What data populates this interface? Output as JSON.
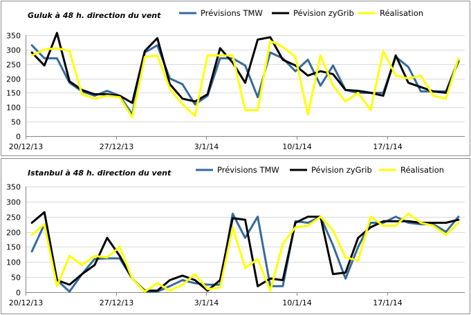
{
  "chart_data": [
    {
      "type": "line",
      "title": "Guluk à 48 h. direction du vent",
      "ylim": [
        0,
        350
      ],
      "yticks": [
        "0",
        "50",
        "100",
        "150",
        "200",
        "250",
        "300",
        "350"
      ],
      "xtick_labels": [
        "20/12/13",
        "27/12/13",
        "3/1/14",
        "10/1/14",
        "17/1/14"
      ],
      "xlim": [
        "20/12/13",
        "23/1/14"
      ],
      "grid": true,
      "legend": "top",
      "series": [
        {
          "name": "Prévisions TMW",
          "color": "#356a9c",
          "values": [
            315,
            270,
            270,
            185,
            155,
            140,
            157,
            140,
            75,
            290,
            315,
            200,
            180,
            110,
            140,
            270,
            270,
            245,
            135,
            290,
            270,
            225,
            265,
            175,
            245,
            160,
            150,
            150,
            150,
            275,
            240,
            155,
            155,
            155,
            265
          ]
        },
        {
          "name": "Pévision zyGrib",
          "color": "#000000",
          "values": [
            290,
            245,
            358,
            190,
            160,
            145,
            145,
            140,
            115,
            295,
            340,
            180,
            130,
            120,
            145,
            305,
            255,
            185,
            335,
            343,
            265,
            245,
            210,
            225,
            215,
            160,
            157,
            150,
            140,
            280,
            185,
            170,
            155,
            150,
            260
          ]
        },
        {
          "name": "Réalisation",
          "color": "#ffff00",
          "values": [
            280,
            300,
            305,
            295,
            145,
            130,
            140,
            135,
            65,
            275,
            280,
            165,
            110,
            70,
            280,
            280,
            280,
            90,
            90,
            330,
            310,
            275,
            75,
            280,
            175,
            120,
            150,
            90,
            295,
            210,
            200,
            210,
            140,
            130,
            270
          ]
        }
      ]
    },
    {
      "type": "line",
      "title": "Istanbul à 48 h. direction du vent",
      "ylim": [
        0,
        350
      ],
      "yticks": [
        "0",
        "50",
        "100",
        "150",
        "200",
        "250",
        "300",
        "350"
      ],
      "xtick_labels": [
        "20/12/13",
        "27/12/13",
        "3/1/14",
        "10/1/14",
        "17/1/14"
      ],
      "xlim": [
        "20/12/13",
        "23/1/14"
      ],
      "grid": true,
      "legend": "top",
      "series": [
        {
          "name": "Prévisions TMW",
          "color": "#356a9c",
          "values": [
            135,
            225,
            40,
            2,
            60,
            110,
            112,
            112,
            45,
            2,
            2,
            20,
            40,
            30,
            25,
            25,
            260,
            180,
            250,
            20,
            20,
            235,
            230,
            250,
            155,
            45,
            150,
            230,
            230,
            250,
            230,
            225,
            225,
            200,
            250
          ]
        },
        {
          "name": "Pévision zyGrib",
          "color": "#000000",
          "values": [
            230,
            265,
            40,
            25,
            60,
            90,
            180,
            120,
            45,
            5,
            5,
            40,
            55,
            40,
            5,
            40,
            245,
            240,
            20,
            45,
            40,
            230,
            250,
            250,
            60,
            65,
            180,
            215,
            235,
            235,
            235,
            230,
            230,
            230,
            240
          ]
        },
        {
          "name": "Réalisation",
          "color": "#ffff00",
          "values": [
            190,
            225,
            20,
            120,
            90,
            120,
            115,
            150,
            45,
            2,
            30,
            5,
            25,
            60,
            10,
            15,
            215,
            80,
            110,
            5,
            160,
            215,
            220,
            250,
            205,
            115,
            105,
            250,
            220,
            220,
            260,
            230,
            220,
            190,
            230
          ]
        }
      ]
    }
  ]
}
